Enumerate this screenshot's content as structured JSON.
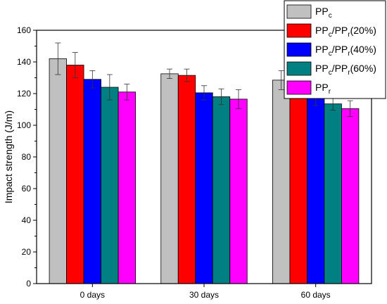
{
  "chart_data": {
    "type": "bar",
    "title": "",
    "xlabel": "",
    "ylabel": "Impact strength (J/m)",
    "ylim": [
      0,
      160
    ],
    "yticks": [
      0,
      20,
      40,
      60,
      80,
      100,
      120,
      140,
      160
    ],
    "categories": [
      "0 days",
      "30 days",
      "60 days"
    ],
    "legend_position": "top-right",
    "grid": false,
    "series": [
      {
        "name": "PPc",
        "legend": [
          [
            "PP",
            ""
          ],
          [
            "c",
            "sub"
          ]
        ],
        "color": "#c0c0c0",
        "values": [
          142,
          132.5,
          128.5
        ],
        "errors": [
          10,
          3,
          6
        ]
      },
      {
        "name": "PPc/PPr(20%)",
        "legend": [
          [
            "PP",
            ""
          ],
          [
            "c",
            "sub"
          ],
          [
            "/PP",
            ""
          ],
          [
            "r",
            "sub"
          ],
          [
            "(20%)",
            ""
          ]
        ],
        "color": "#ff0000",
        "values": [
          138,
          131.5,
          123.5
        ],
        "errors": [
          8,
          4,
          5
        ]
      },
      {
        "name": "PPc/PPr(40%)",
        "legend": [
          [
            "PP",
            ""
          ],
          [
            "c",
            "sub"
          ],
          [
            "/PP",
            ""
          ],
          [
            "r",
            "sub"
          ],
          [
            "(40%)",
            ""
          ]
        ],
        "color": "#0000ff",
        "values": [
          129,
          120.5,
          118.5
        ],
        "errors": [
          5.5,
          4.5,
          6
        ]
      },
      {
        "name": "PPc/PPr(60%)",
        "legend": [
          [
            "PP",
            ""
          ],
          [
            "c",
            "sub"
          ],
          [
            "/PP",
            ""
          ],
          [
            "r",
            "sub"
          ],
          [
            "(60%)",
            ""
          ]
        ],
        "color": "#008080",
        "values": [
          124,
          118,
          113.5
        ],
        "errors": [
          8,
          5,
          4
        ]
      },
      {
        "name": "PPr",
        "legend": [
          [
            "PP",
            ""
          ],
          [
            "r",
            "sub"
          ]
        ],
        "color": "#ff00ff",
        "values": [
          121,
          116.5,
          110.5
        ],
        "errors": [
          5,
          6,
          5
        ]
      }
    ]
  }
}
